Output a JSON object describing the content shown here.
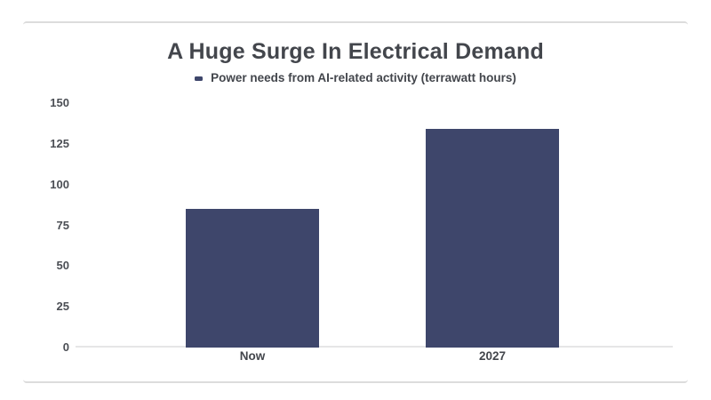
{
  "chart_data": {
    "type": "bar",
    "title": "A Huge Surge In Electrical Demand",
    "legend": "Power needs from AI-related activity (terrawatt hours)",
    "categories": [
      "Now",
      "2027"
    ],
    "values": [
      85,
      134
    ],
    "xlabel": "",
    "ylabel": "",
    "yticks": [
      0,
      25,
      50,
      75,
      100,
      125,
      150
    ],
    "ylim": [
      0,
      150
    ],
    "grid": false,
    "legend_position": "top-center",
    "colors": {
      "bar": "#3e466b",
      "legend_marker": "#3e466b",
      "axis_line": "#e6e6e7",
      "title_text": "#43464c",
      "tick_text": "#4b4e54",
      "card_border": "#dcdcdc"
    }
  }
}
